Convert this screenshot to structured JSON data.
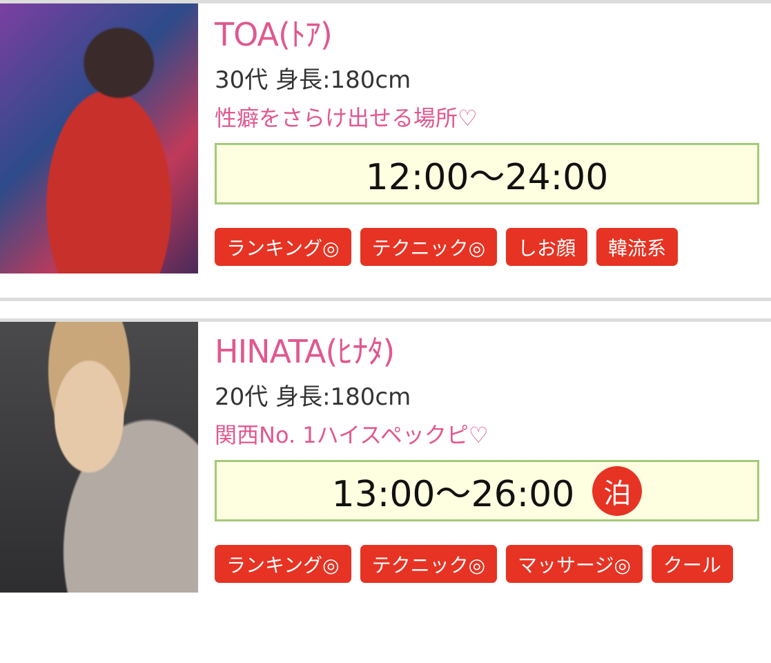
{
  "accent": "#e0588f",
  "tag_color": "#e63323",
  "cards": [
    {
      "name": "TOA(ﾄｱ)",
      "meta": "30代 身長:180cm",
      "catch": "性癖をさらけ出せる場所♡",
      "schedule": "12:00〜24:00",
      "tags": [
        "ランキング◎",
        "テクニック◎",
        "しお顔",
        "韓流系"
      ]
    },
    {
      "name": "HINATA(ﾋﾅﾀ)",
      "meta": "20代 身長:180cm",
      "catch": "関西No. 1ハイスペックピ♡",
      "schedule": "13:00〜26:00",
      "overnight": "泊",
      "tags": [
        "ランキング◎",
        "テクニック◎",
        "マッサージ◎",
        "クール"
      ]
    }
  ]
}
